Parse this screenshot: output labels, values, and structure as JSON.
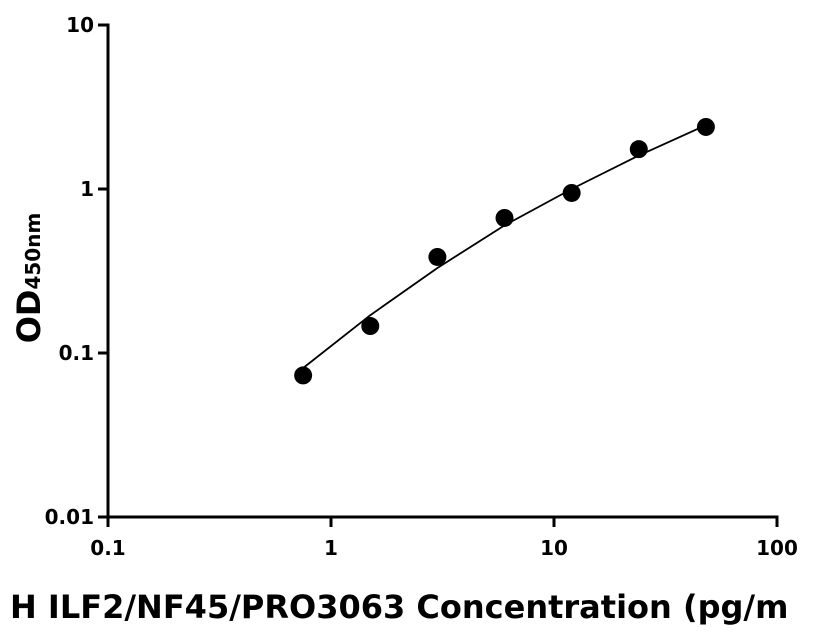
{
  "chart_data": {
    "type": "scatter",
    "xlabel": "H ILF2/NF45/PRO3063 Concentration (pg/m",
    "ylabel": "OD",
    "ylabel_sub": "450nm",
    "xscale": "log",
    "yscale": "log",
    "xlim": [
      0.1,
      100
    ],
    "ylim": [
      0.01,
      10
    ],
    "xticks": [
      0.1,
      1,
      10,
      100
    ],
    "yticks": [
      0.01,
      0.1,
      1,
      10
    ],
    "series": [
      {
        "style": "points",
        "color": "#000000",
        "x": [
          0.75,
          1.5,
          3,
          6,
          12,
          24,
          48
        ],
        "values": [
          0.073,
          0.146,
          0.385,
          0.666,
          0.946,
          1.75,
          2.39
        ]
      },
      {
        "style": "line",
        "color": "#000000",
        "x": [
          0.75,
          1.5,
          3,
          6,
          12,
          24,
          48
        ],
        "values": [
          0.081,
          0.17,
          0.33,
          0.6,
          1.0,
          1.6,
          2.45
        ]
      }
    ]
  }
}
